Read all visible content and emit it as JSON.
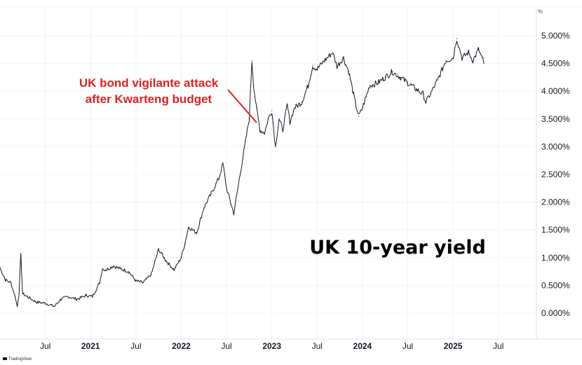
{
  "chart_data": {
    "type": "line",
    "title": "UK 10-year yield",
    "annotation": [
      "UK bond vigilante attack",
      "after Kwarteng budget"
    ],
    "y_unit": "%",
    "ylim": [
      -0.3,
      5.3
    ],
    "y_ticks": [
      {
        "value": 5.0,
        "label": "5.000%"
      },
      {
        "value": 4.5,
        "label": "4.500%"
      },
      {
        "value": 4.0,
        "label": "4.000%"
      },
      {
        "value": 3.5,
        "label": "3.500%"
      },
      {
        "value": 3.0,
        "label": "3.000%"
      },
      {
        "value": 2.5,
        "label": "2.500%"
      },
      {
        "value": 2.0,
        "label": "2.000%"
      },
      {
        "value": 1.5,
        "label": "1.500%"
      },
      {
        "value": 1.0,
        "label": "1.000%"
      },
      {
        "value": 0.5,
        "label": "0.500%"
      },
      {
        "value": 0.0,
        "label": "0.000%"
      }
    ],
    "xlim": [
      2020.0,
      2025.92
    ],
    "x_ticks": [
      {
        "value": 2020.5,
        "label": "Jul",
        "bold": false
      },
      {
        "value": 2021.0,
        "label": "2021",
        "bold": true
      },
      {
        "value": 2021.5,
        "label": "Jul",
        "bold": false
      },
      {
        "value": 2022.0,
        "label": "2022",
        "bold": true
      },
      {
        "value": 2022.5,
        "label": "Jul",
        "bold": false
      },
      {
        "value": 2023.0,
        "label": "2023",
        "bold": true
      },
      {
        "value": 2023.5,
        "label": "Jul",
        "bold": false
      },
      {
        "value": 2024.0,
        "label": "2024",
        "bold": true
      },
      {
        "value": 2024.5,
        "label": "Jul",
        "bold": false
      },
      {
        "value": 2025.0,
        "label": "2025",
        "bold": true
      },
      {
        "value": 2025.5,
        "label": "Jul",
        "bold": false
      }
    ],
    "series": [
      {
        "name": "UK 10-year yield",
        "color": "#131722",
        "x": [
          2020.0,
          2020.06,
          2020.12,
          2020.17,
          2020.19,
          2020.21,
          2020.23,
          2020.25,
          2020.3,
          2020.4,
          2020.5,
          2020.6,
          2020.67,
          2020.75,
          2020.85,
          2020.95,
          2021.02,
          2021.1,
          2021.13,
          2021.17,
          2021.25,
          2021.33,
          2021.42,
          2021.5,
          2021.58,
          2021.67,
          2021.75,
          2021.83,
          2021.92,
          2022.0,
          2022.04,
          2022.08,
          2022.17,
          2022.25,
          2022.33,
          2022.42,
          2022.46,
          2022.5,
          2022.58,
          2022.6,
          2022.65,
          2022.7,
          2022.75,
          2022.78,
          2022.8,
          2022.83,
          2022.87,
          2022.92,
          2022.96,
          2023.0,
          2023.04,
          2023.08,
          2023.12,
          2023.17,
          2023.2,
          2023.25,
          2023.33,
          2023.4,
          2023.45,
          2023.5,
          2023.58,
          2023.67,
          2023.72,
          2023.79,
          2023.85,
          2023.92,
          2023.96,
          2024.0,
          2024.04,
          2024.08,
          2024.17,
          2024.25,
          2024.33,
          2024.42,
          2024.5,
          2024.58,
          2024.67,
          2024.7,
          2024.75,
          2024.83,
          2024.92,
          2025.0,
          2025.04,
          2025.1,
          2025.17,
          2025.22,
          2025.28,
          2025.32,
          2025.34
        ],
        "values": [
          0.82,
          0.6,
          0.55,
          0.28,
          0.12,
          0.35,
          1.05,
          0.35,
          0.3,
          0.2,
          0.18,
          0.12,
          0.25,
          0.3,
          0.25,
          0.32,
          0.3,
          0.55,
          0.8,
          0.78,
          0.85,
          0.8,
          0.75,
          0.58,
          0.55,
          0.7,
          1.15,
          0.95,
          0.78,
          1.0,
          1.25,
          1.55,
          1.45,
          1.9,
          2.15,
          2.45,
          2.7,
          2.25,
          1.8,
          2.0,
          2.5,
          3.0,
          3.5,
          4.55,
          4.1,
          3.7,
          3.3,
          3.25,
          3.5,
          3.65,
          3.0,
          3.5,
          3.3,
          3.75,
          3.45,
          3.7,
          3.8,
          4.1,
          4.45,
          4.4,
          4.55,
          4.7,
          4.45,
          4.6,
          4.35,
          3.8,
          3.55,
          3.7,
          3.9,
          4.1,
          4.15,
          4.25,
          4.35,
          4.25,
          4.15,
          4.05,
          3.95,
          3.8,
          3.95,
          4.2,
          4.55,
          4.6,
          4.95,
          4.6,
          4.7,
          4.55,
          4.75,
          4.6,
          4.5
        ]
      }
    ]
  },
  "watermark": {
    "brand": "TradingView"
  }
}
